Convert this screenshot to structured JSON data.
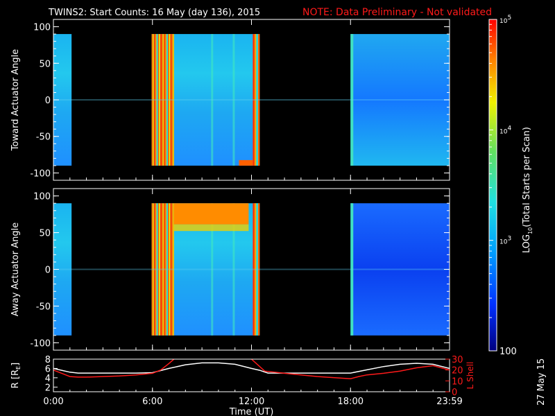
{
  "title_main": "TWINS2: Start Counts: 16 May (day 136), 2015",
  "title_note": "NOTE: Data Preliminary - Not validated",
  "date_stamp": "27 May 15",
  "colorbar": {
    "label": "LOG10(Total Starts per Scan)",
    "label_main": "LOG",
    "label_sub": "10",
    "label_rest": "(Total Starts per Scan)",
    "ticks": [
      "100",
      "10^3",
      "10^4",
      "10^5"
    ],
    "tick_values": [
      100,
      1000,
      10000,
      100000
    ],
    "range": [
      100,
      100000
    ],
    "scale": "log",
    "colors": [
      "#000080",
      "#0030ff",
      "#00a0ff",
      "#20e0e0",
      "#60e060",
      "#f0f000",
      "#ff8000",
      "#ff0000"
    ]
  },
  "chart_data": [
    {
      "type": "heatmap",
      "panel": "top",
      "ylabel": "Toward Actuator Angle",
      "ylim": [
        -110,
        110
      ],
      "yticks": [
        "100",
        "50",
        "0",
        "-50",
        "-100"
      ],
      "ytick_values": [
        100,
        50,
        0,
        -50,
        -100
      ],
      "xlim_hours": [
        0,
        24
      ],
      "data_extent_angle": [
        -90,
        90
      ],
      "data_segments_hours": [
        [
          0,
          1.1
        ],
        [
          5.95,
          12.5
        ],
        [
          18.0,
          24.0
        ]
      ],
      "description_levels": [
        "cyan-blue",
        "orange-red striped",
        "blue"
      ]
    },
    {
      "type": "heatmap",
      "panel": "middle",
      "ylabel": "Away Actuator Angle",
      "ylim": [
        -110,
        110
      ],
      "yticks": [
        "100",
        "50",
        "0",
        "-50",
        "-100"
      ],
      "ytick_values": [
        100,
        50,
        0,
        -50,
        -100
      ],
      "xlim_hours": [
        0,
        24
      ],
      "data_extent_angle": [
        -90,
        90
      ],
      "data_segments_hours": [
        [
          0,
          1.1
        ],
        [
          5.95,
          12.5
        ],
        [
          18.0,
          24.0
        ]
      ]
    },
    {
      "type": "line",
      "panel": "bottom",
      "ylabel_left": "R [RE]",
      "ylabel_left_main": "R [R",
      "ylabel_left_sub": "E",
      "ylabel_left_close": "]",
      "ylabel_right": "L Shell",
      "ylim_left": [
        1,
        8
      ],
      "yticks_left": [
        "2",
        "4",
        "6",
        "8"
      ],
      "ylim_right": [
        0,
        30
      ],
      "yticks_right": [
        "0",
        "10",
        "20",
        "30"
      ],
      "xlabel": "Time (UT)",
      "xticks": [
        "0:00",
        "6:00",
        "12:00",
        "18:00",
        "23:59"
      ],
      "xtick_hours": [
        0,
        6,
        12,
        18,
        24
      ],
      "series": [
        {
          "name": "R",
          "color": "#ffffff",
          "x": [
            0,
            0.5,
            1,
            1.5,
            2,
            3,
            4,
            5,
            6,
            7,
            8,
            9,
            10,
            11,
            12,
            12.5,
            13,
            14,
            15,
            16,
            17,
            18,
            19,
            20,
            21,
            22,
            23,
            24
          ],
          "y": [
            6.0,
            5.6,
            5.2,
            5.0,
            5.0,
            5.0,
            5.0,
            5.0,
            5.1,
            6.0,
            6.8,
            7.2,
            7.2,
            6.9,
            6.0,
            5.6,
            5.0,
            5.0,
            5.0,
            5.0,
            5.0,
            5.0,
            5.7,
            6.4,
            6.9,
            7.1,
            6.9,
            6.0
          ]
        },
        {
          "name": "L Shell",
          "color": "#ff1a1a",
          "x": [
            0,
            0.5,
            1,
            1.5,
            2,
            3,
            4,
            5,
            6,
            6.5,
            7,
            7.3,
            7.6,
            11,
            12,
            12.8,
            14,
            16,
            18,
            18.5,
            19,
            20,
            21,
            22,
            23,
            24
          ],
          "y": [
            20,
            17,
            14,
            13.5,
            13.5,
            14,
            14.5,
            15.5,
            17,
            20,
            26,
            30,
            33,
            33,
            30,
            19,
            17,
            14,
            12,
            14,
            15.5,
            17,
            19,
            22,
            24,
            20
          ]
        }
      ]
    }
  ]
}
